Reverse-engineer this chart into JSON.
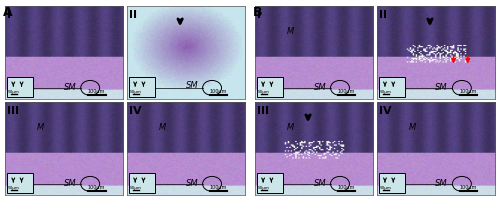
{
  "figure_width": 5.0,
  "figure_height": 1.97,
  "dpi": 100,
  "background_color": "#ffffff",
  "panel_A_label": "A",
  "panel_B_label": "B",
  "quadrant_labels": [
    "I",
    "II",
    "III",
    "IV"
  ],
  "text_labels_A": [
    "SM",
    "SM",
    "SM",
    "SM",
    "M",
    "M"
  ],
  "text_labels_B": [
    "SM",
    "SM",
    "SM",
    "SM",
    "M",
    "M",
    "M",
    "M"
  ],
  "panel_A_bg": "#c8e8ec",
  "panel_B_bg": "#c8e8ec",
  "tissue_color_purple": "#8060a0",
  "tissue_color_light": "#b0d0d8",
  "tissue_color_deep": "#6040a0",
  "border_color": "#333333",
  "label_fontsize": 7,
  "panel_label_fontsize": 9,
  "inset_bg": "#d0e8ec",
  "scale_bar_color": "#222222"
}
